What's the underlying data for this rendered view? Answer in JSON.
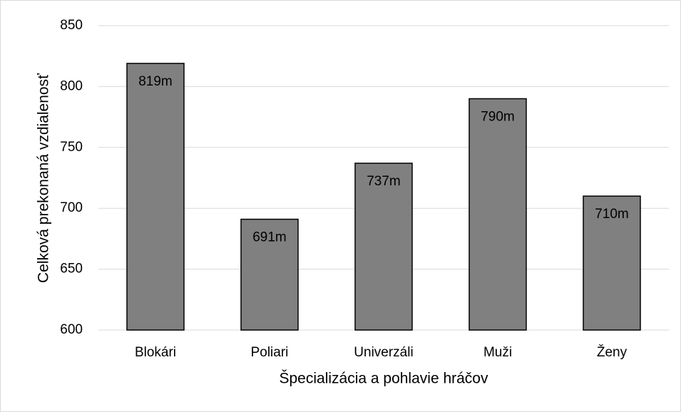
{
  "chart_data": {
    "type": "bar",
    "x_label": "Špecializácia a pohlavie hráčov",
    "y_label": "Celková prekonaná vzdialenosť",
    "categories": [
      "Blokári",
      "Poliari",
      "Univerzáli",
      "Muži",
      "Ženy"
    ],
    "values": [
      819,
      691,
      737,
      790,
      710
    ],
    "value_labels": [
      "819m",
      "691m",
      "737m",
      "790m",
      "710m"
    ],
    "color": "#808080",
    "ylim": [
      600,
      850
    ],
    "yticks": [
      600,
      650,
      700,
      750,
      800,
      850
    ],
    "grid": true
  }
}
